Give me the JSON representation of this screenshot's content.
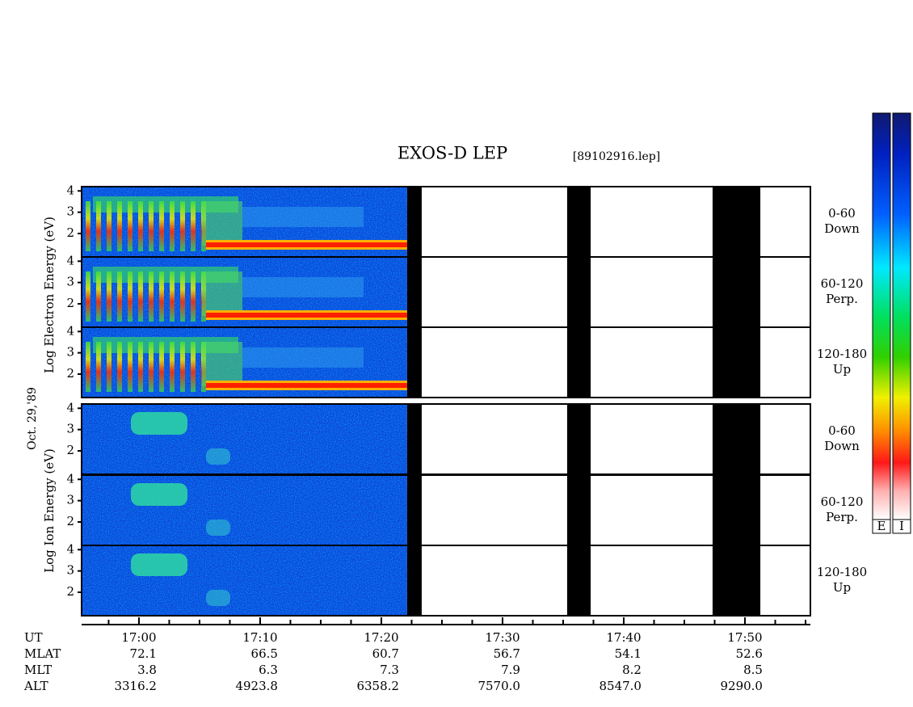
{
  "title": "EXOS-D LEP",
  "file": "[89102916.lep]",
  "electron_label": "Log Electron Energy (eV)",
  "ion_label": "Log Ion Energy (eV)",
  "date": "Oct. 29,'89",
  "energy_axis": {
    "ylim": [
      0.9,
      4.2
    ],
    "yticks": [
      2,
      3,
      4
    ]
  },
  "pitch_angles": [
    {
      "range": "0-60",
      "direction": "Down"
    },
    {
      "range": "60-120",
      "direction": "Perp."
    },
    {
      "range": "120-180",
      "direction": "Up"
    }
  ],
  "time_axis": {
    "name": "UT",
    "xlim": [
      1015.27,
      1075.4
    ],
    "minor_step": 2.5,
    "xticks": [
      {
        "value": 1020,
        "label": "17:00"
      },
      {
        "value": 1030,
        "label": "17:10"
      },
      {
        "value": 1040,
        "label": "17:20"
      },
      {
        "value": 1050,
        "label": "17:30"
      },
      {
        "value": 1060,
        "label": "17:40"
      },
      {
        "value": 1070,
        "label": "17:50"
      }
    ],
    "data_gaps": [
      [
        1042.13,
        1043.33
      ],
      [
        1055.33,
        1057.27
      ],
      [
        1067.33,
        1071.27
      ]
    ]
  },
  "ephemeris": [
    {
      "name": "MLAT",
      "values": [
        "72.1",
        "66.5",
        "60.7",
        "56.7",
        "54.1",
        "52.6"
      ]
    },
    {
      "name": "MLT",
      "values": [
        "3.8",
        "6.3",
        "7.3",
        "7.9",
        "8.2",
        "8.5"
      ]
    },
    {
      "name": "ALT",
      "values": [
        "3316.2",
        "4923.8",
        "6358.2",
        "7570.0",
        "8547.0",
        "9290.0"
      ]
    }
  ],
  "colorbar_labels": [
    "E",
    "I"
  ]
}
